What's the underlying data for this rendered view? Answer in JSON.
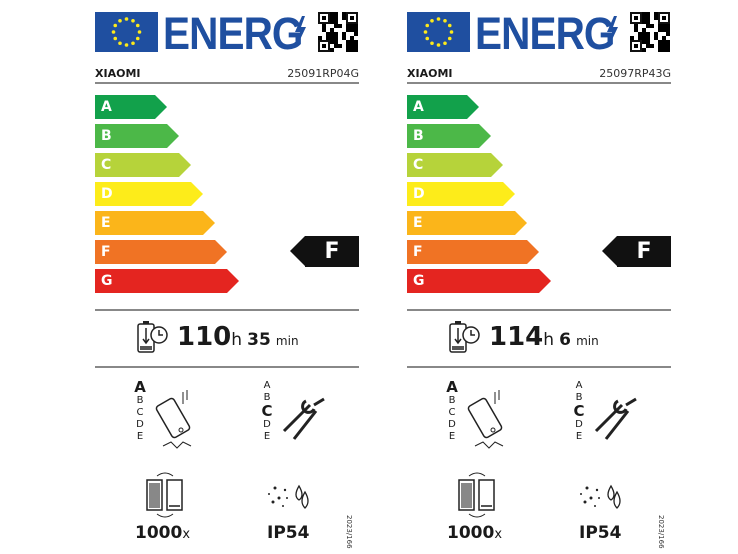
{
  "header": {
    "logo_text": "ENERG",
    "icon": "lightning-bolt-icon"
  },
  "classes": [
    {
      "letter": "A",
      "color": "#12a14b"
    },
    {
      "letter": "B",
      "color": "#4cb848"
    },
    {
      "letter": "C",
      "color": "#b6d33a"
    },
    {
      "letter": "D",
      "color": "#fdec1a"
    },
    {
      "letter": "E",
      "color": "#fbb51a"
    },
    {
      "letter": "F",
      "color": "#f07324"
    },
    {
      "letter": "G",
      "color": "#e42520"
    }
  ],
  "scale_letters": [
    "A",
    "B",
    "C",
    "D",
    "E"
  ],
  "labels": [
    {
      "brand": "XIAOMI",
      "model": "25091RP04G",
      "energy_class": "F",
      "hours": "110",
      "h": "h",
      "minutes": "35",
      "min": "min",
      "drop_class": "A",
      "repair_class": "C",
      "cycles": "1000",
      "cycles_unit": "x",
      "ip": "IP54",
      "regulation": "2023/166"
    },
    {
      "brand": "XIAOMI",
      "model": "25097RP43G",
      "energy_class": "F",
      "hours": "114",
      "h": "h",
      "minutes": "6",
      "min": "min",
      "drop_class": "A",
      "repair_class": "C",
      "cycles": "1000",
      "cycles_unit": "x",
      "ip": "IP54",
      "regulation": "2023/166"
    }
  ]
}
